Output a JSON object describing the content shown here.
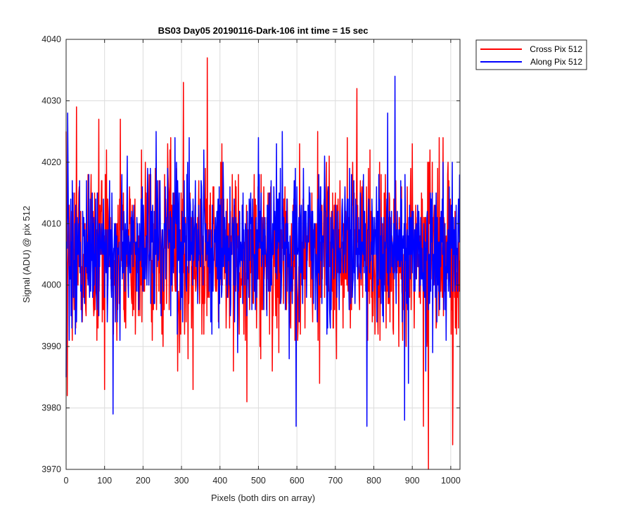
{
  "chart_data": {
    "type": "line",
    "title": "BS03 Day05 20190116-Dark-106 int time = 15 sec",
    "xlabel": "Pixels (both dirs on array)",
    "ylabel": "Signal (ADU) @ pix 512",
    "xlim": [
      0,
      1024
    ],
    "ylim": [
      3970,
      4040
    ],
    "xticks": [
      0,
      100,
      200,
      300,
      400,
      500,
      600,
      700,
      800,
      900,
      1000
    ],
    "yticks": [
      3970,
      3980,
      3990,
      4000,
      4010,
      4020,
      4030,
      4040
    ],
    "grid": true,
    "legend_position": "outside-top-right",
    "n_points": 1024,
    "series": [
      {
        "name": "Cross Pix 512",
        "color": "#ff0000",
        "mean": 4005,
        "std": 7,
        "min": 3970,
        "max": 4037,
        "notable_points": [
          {
            "x": 0,
            "y": 4025
          },
          {
            "x": 3,
            "y": 3982
          },
          {
            "x": 27,
            "y": 4029
          },
          {
            "x": 85,
            "y": 4027
          },
          {
            "x": 100,
            "y": 3983
          },
          {
            "x": 141,
            "y": 4027
          },
          {
            "x": 196,
            "y": 4022
          },
          {
            "x": 305,
            "y": 4033
          },
          {
            "x": 330,
            "y": 3983
          },
          {
            "x": 367,
            "y": 4037
          },
          {
            "x": 405,
            "y": 4023
          },
          {
            "x": 470,
            "y": 3981
          },
          {
            "x": 742,
            "y": 3996
          },
          {
            "x": 756,
            "y": 4032
          },
          {
            "x": 929,
            "y": 3977
          },
          {
            "x": 942,
            "y": 3970
          },
          {
            "x": 980,
            "y": 4024
          },
          {
            "x": 1005,
            "y": 3974
          },
          {
            "x": 1024,
            "y": 4004
          }
        ]
      },
      {
        "name": "Along Pix 512",
        "color": "#0000ff",
        "mean": 4006,
        "std": 6,
        "min": 3977,
        "max": 4034,
        "notable_points": [
          {
            "x": 0,
            "y": 3985
          },
          {
            "x": 4,
            "y": 4028
          },
          {
            "x": 122,
            "y": 3979
          },
          {
            "x": 234,
            "y": 4025
          },
          {
            "x": 320,
            "y": 4024
          },
          {
            "x": 598,
            "y": 3977
          },
          {
            "x": 782,
            "y": 3977
          },
          {
            "x": 855,
            "y": 4034
          },
          {
            "x": 880,
            "y": 3978
          },
          {
            "x": 935,
            "y": 3986
          },
          {
            "x": 1024,
            "y": 4018
          }
        ]
      }
    ]
  }
}
